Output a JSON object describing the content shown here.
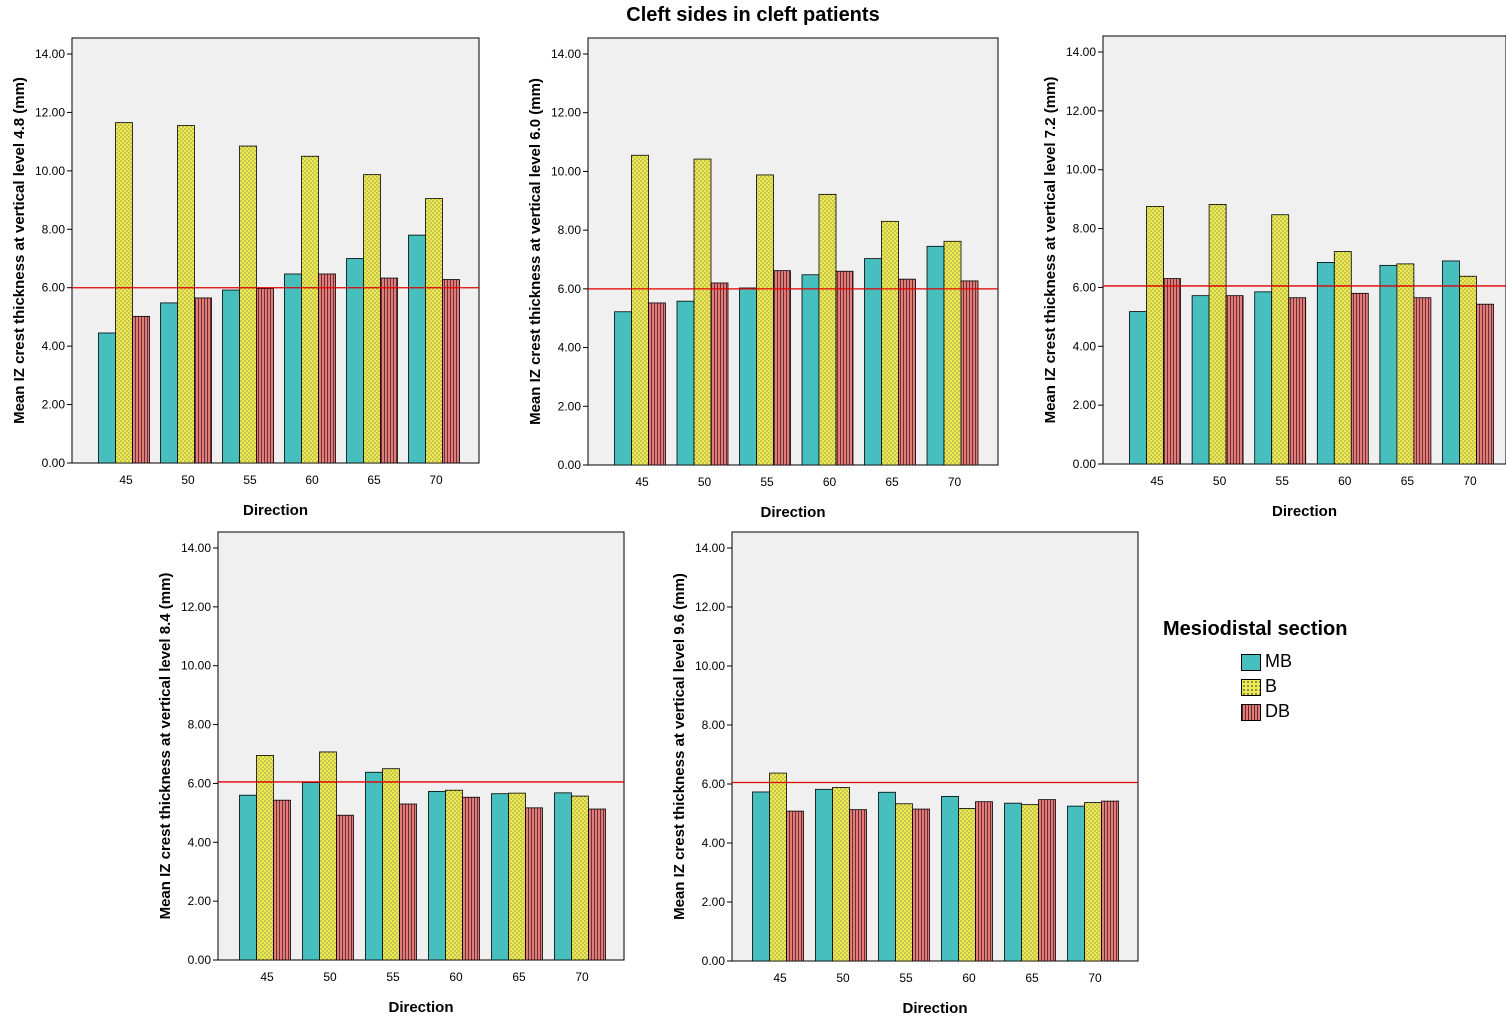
{
  "title": "Cleft sides in cleft patients",
  "colors": {
    "MB": "#47BFBF",
    "B": "#EDEA58",
    "DB": "#E57A7A",
    "reference_line": "#E00000",
    "plot_bg": "#F0F0F0"
  },
  "legend": {
    "title": "Mesiodistal section",
    "items": [
      {
        "label": "MB",
        "color": "#47BFBF",
        "pattern": "solid"
      },
      {
        "label": "B",
        "color": "#EDEA58",
        "pattern": "dots"
      },
      {
        "label": "DB",
        "color": "#E57A7A",
        "pattern": "vertical-stripes"
      }
    ]
  },
  "chart_data": [
    {
      "type": "bar",
      "categories": [
        "45",
        "50",
        "55",
        "60",
        "65",
        "70"
      ],
      "xlabel": "Direction",
      "ylabel": "Mean IZ crest thickness at vertical level 4.8 (mm)",
      "ylim": [
        0,
        14
      ],
      "yticks": [
        "0.00",
        "2.00",
        "4.00",
        "6.00",
        "8.00",
        "10.00",
        "12.00",
        "14.00"
      ],
      "reference_line": 6.0,
      "series": [
        {
          "name": "MB",
          "values": [
            4.45,
            5.48,
            5.92,
            6.47,
            7.0,
            7.8
          ]
        },
        {
          "name": "B",
          "values": [
            11.65,
            11.55,
            10.85,
            10.5,
            9.87,
            9.05
          ]
        },
        {
          "name": "DB",
          "values": [
            5.02,
            5.65,
            5.97,
            6.47,
            6.33,
            6.28
          ]
        }
      ]
    },
    {
      "type": "bar",
      "categories": [
        "45",
        "50",
        "55",
        "60",
        "65",
        "70"
      ],
      "xlabel": "Direction",
      "ylabel": "Mean IZ crest thickness at vertical level 6.0 (mm)",
      "ylim": [
        0,
        14
      ],
      "yticks": [
        "0.00",
        "2.00",
        "4.00",
        "6.00",
        "8.00",
        "10.00",
        "12.00",
        "14.00"
      ],
      "reference_line": 6.0,
      "series": [
        {
          "name": "MB",
          "values": [
            5.22,
            5.58,
            6.03,
            6.48,
            7.03,
            7.45
          ]
        },
        {
          "name": "B",
          "values": [
            10.55,
            10.42,
            9.88,
            9.22,
            8.3,
            7.62
          ]
        },
        {
          "name": "DB",
          "values": [
            5.52,
            6.2,
            6.62,
            6.6,
            6.33,
            6.27
          ]
        }
      ]
    },
    {
      "type": "bar",
      "categories": [
        "45",
        "50",
        "55",
        "60",
        "65",
        "70"
      ],
      "xlabel": "Direction",
      "ylabel": "Mean IZ crest thickness at vertical level 7.2 (mm)",
      "ylim": [
        0,
        14
      ],
      "yticks": [
        "0.00",
        "2.00",
        "4.00",
        "6.00",
        "8.00",
        "10.00",
        "12.00",
        "14.00"
      ],
      "reference_line": 6.05,
      "series": [
        {
          "name": "MB",
          "values": [
            5.18,
            5.72,
            5.85,
            6.85,
            6.75,
            6.9
          ]
        },
        {
          "name": "B",
          "values": [
            8.75,
            8.82,
            8.47,
            7.22,
            6.8,
            6.38
          ]
        },
        {
          "name": "DB",
          "values": [
            6.3,
            5.72,
            5.65,
            5.8,
            5.65,
            5.43
          ]
        }
      ]
    },
    {
      "type": "bar",
      "categories": [
        "45",
        "50",
        "55",
        "60",
        "65",
        "70"
      ],
      "xlabel": "Direction",
      "ylabel": "Mean IZ crest thickness at vertical level 8.4 (mm)",
      "ylim": [
        0,
        14
      ],
      "yticks": [
        "0.00",
        "2.00",
        "4.00",
        "6.00",
        "8.00",
        "10.00",
        "12.00",
        "14.00"
      ],
      "reference_line": 6.05,
      "series": [
        {
          "name": "MB",
          "values": [
            5.6,
            6.03,
            6.38,
            5.73,
            5.65,
            5.68
          ]
        },
        {
          "name": "B",
          "values": [
            6.95,
            7.07,
            6.5,
            5.77,
            5.67,
            5.57
          ]
        },
        {
          "name": "DB",
          "values": [
            5.43,
            4.92,
            5.3,
            5.53,
            5.17,
            5.13
          ]
        }
      ]
    },
    {
      "type": "bar",
      "categories": [
        "45",
        "50",
        "55",
        "60",
        "65",
        "70"
      ],
      "xlabel": "Direction",
      "ylabel": "Mean IZ crest thickness at vertical level 9.6 (mm)",
      "ylim": [
        0,
        14
      ],
      "yticks": [
        "0.00",
        "2.00",
        "4.00",
        "6.00",
        "8.00",
        "10.00",
        "12.00",
        "14.00"
      ],
      "reference_line": 6.05,
      "series": [
        {
          "name": "MB",
          "values": [
            5.73,
            5.82,
            5.72,
            5.58,
            5.35,
            5.25
          ]
        },
        {
          "name": "B",
          "values": [
            6.37,
            5.88,
            5.33,
            5.17,
            5.3,
            5.37
          ]
        },
        {
          "name": "DB",
          "values": [
            5.08,
            5.13,
            5.15,
            5.4,
            5.47,
            5.42
          ]
        }
      ]
    }
  ]
}
